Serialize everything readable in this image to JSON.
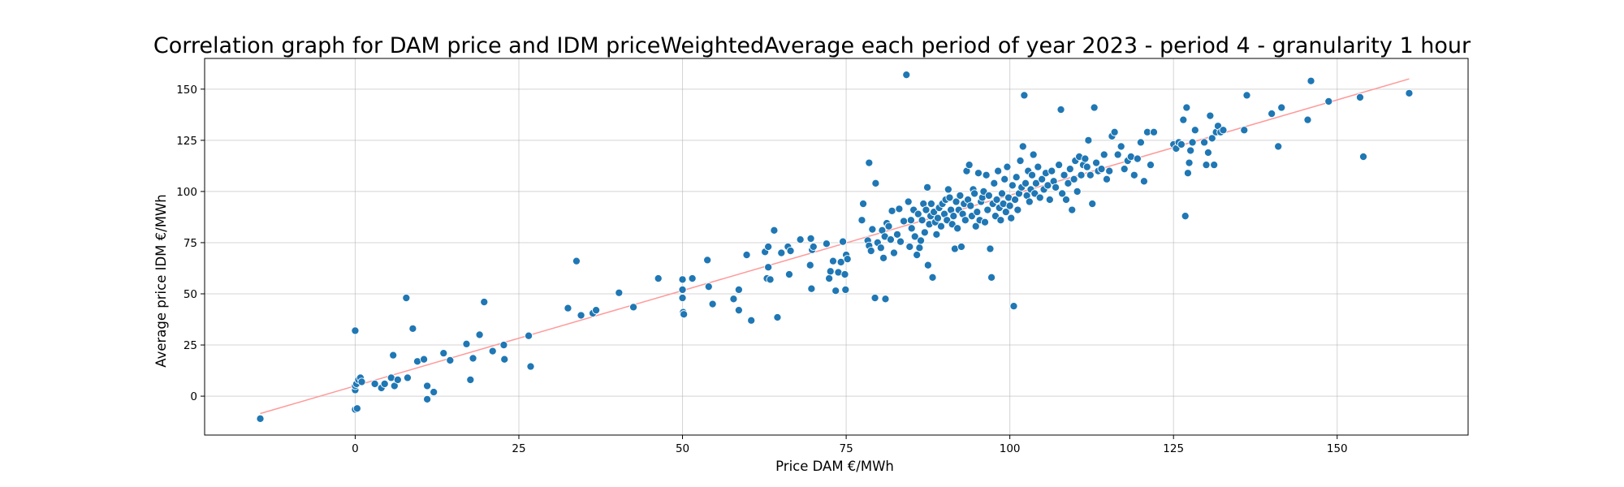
{
  "chart_data": {
    "type": "scatter",
    "title": "Correlation graph for DAM price and IDM priceWeightedAverage each period of year 2023 - period 4 - granularity 1 hour",
    "xlabel": "Price DAM €/MWh",
    "ylabel": "Average price IDM €/MWh",
    "xlim": [
      -23,
      170
    ],
    "ylim": [
      -19,
      165
    ],
    "x_ticks": [
      0,
      25,
      50,
      75,
      100,
      125,
      150
    ],
    "y_ticks": [
      0,
      25,
      50,
      75,
      100,
      125,
      150
    ],
    "grid": true,
    "point_color": "#1f77b4",
    "trend_line_color": "#ff9999",
    "trend_line": {
      "x": [
        -14.5,
        161
      ],
      "y": [
        -8.5,
        155
      ]
    },
    "series": [
      {
        "points": [
          [
            -14.5,
            -11
          ],
          [
            0,
            -6.5
          ],
          [
            0.3,
            -6
          ],
          [
            0,
            3
          ],
          [
            0,
            5
          ],
          [
            0.2,
            6
          ],
          [
            0.5,
            8
          ],
          [
            0.8,
            9
          ],
          [
            1,
            7
          ],
          [
            0,
            32
          ],
          [
            3,
            6
          ],
          [
            4,
            4
          ],
          [
            4.5,
            6
          ],
          [
            5.5,
            9
          ],
          [
            5.8,
            20
          ],
          [
            6,
            5
          ],
          [
            6.5,
            8
          ],
          [
            7.8,
            48
          ],
          [
            8,
            9
          ],
          [
            8.8,
            33
          ],
          [
            9.5,
            17
          ],
          [
            10.5,
            18
          ],
          [
            11,
            5
          ],
          [
            11,
            -1.5
          ],
          [
            12,
            2
          ],
          [
            13.5,
            21
          ],
          [
            14.5,
            17.5
          ],
          [
            17,
            25.5
          ],
          [
            17.6,
            8
          ],
          [
            18,
            18.5
          ],
          [
            19,
            30
          ],
          [
            19.7,
            46
          ],
          [
            21,
            22
          ],
          [
            22.7,
            25
          ],
          [
            22.8,
            18
          ],
          [
            26.5,
            29.5
          ],
          [
            26.8,
            14.5
          ],
          [
            32.5,
            43
          ],
          [
            33.8,
            66
          ],
          [
            34.5,
            39.5
          ],
          [
            36.3,
            40.5
          ],
          [
            36.8,
            42
          ],
          [
            40.3,
            50.5
          ],
          [
            42.5,
            43.5
          ],
          [
            46.3,
            57.5
          ],
          [
            50,
            57
          ],
          [
            50,
            52
          ],
          [
            50,
            48
          ],
          [
            50.1,
            41
          ],
          [
            50.2,
            40
          ],
          [
            51.5,
            57.5
          ],
          [
            53.8,
            66.5
          ],
          [
            54,
            53.5
          ],
          [
            54.6,
            45
          ],
          [
            57.8,
            47.5
          ],
          [
            58.6,
            52
          ],
          [
            58.6,
            42
          ],
          [
            59.8,
            69
          ],
          [
            60.5,
            37
          ],
          [
            62.6,
            70.5
          ],
          [
            62.9,
            57.5
          ],
          [
            63.1,
            63
          ],
          [
            63.4,
            57
          ],
          [
            63.1,
            73
          ],
          [
            64,
            81
          ],
          [
            64.5,
            38.5
          ],
          [
            65.1,
            70
          ],
          [
            66.3,
            59.5
          ],
          [
            66.1,
            73
          ],
          [
            66.5,
            71
          ],
          [
            68,
            76.5
          ],
          [
            69.5,
            64
          ],
          [
            69.6,
            77
          ],
          [
            69.7,
            52.5
          ],
          [
            69.8,
            71.5
          ],
          [
            70,
            73
          ],
          [
            72,
            74.5
          ],
          [
            72.4,
            57.5
          ],
          [
            72.6,
            61
          ],
          [
            73,
            66
          ],
          [
            73.4,
            51.5
          ],
          [
            73.8,
            60.5
          ],
          [
            74.2,
            65.5
          ],
          [
            74.5,
            75.5
          ],
          [
            74.8,
            59.5
          ],
          [
            74.9,
            52
          ],
          [
            75,
            69
          ],
          [
            75.2,
            67
          ],
          [
            77.4,
            86
          ],
          [
            77.6,
            94
          ],
          [
            78.3,
            76
          ],
          [
            78.5,
            114
          ],
          [
            78.5,
            73.5
          ],
          [
            78.8,
            71
          ],
          [
            79,
            81.5
          ],
          [
            79.4,
            48
          ],
          [
            79.5,
            104
          ],
          [
            79.8,
            75
          ],
          [
            80.3,
            72.5
          ],
          [
            80.5,
            81
          ],
          [
            80.7,
            67.5
          ],
          [
            80.9,
            78
          ],
          [
            81,
            47.5
          ],
          [
            81.2,
            84.5
          ],
          [
            81.5,
            83
          ],
          [
            81.8,
            76.5
          ],
          [
            82,
            90.5
          ],
          [
            82.3,
            70
          ],
          [
            82.8,
            79
          ],
          [
            83.1,
            91.5
          ],
          [
            83.3,
            75.5
          ],
          [
            83.8,
            85.5
          ],
          [
            84.2,
            157
          ],
          [
            84.5,
            95
          ],
          [
            84.7,
            73
          ],
          [
            84.9,
            86
          ],
          [
            85,
            82
          ],
          [
            85.3,
            91
          ],
          [
            85.5,
            78
          ],
          [
            85.8,
            69
          ],
          [
            86,
            89
          ],
          [
            86.2,
            72.5
          ],
          [
            86.4,
            76
          ],
          [
            86.6,
            86
          ],
          [
            86.8,
            94
          ],
          [
            87,
            80
          ],
          [
            87.2,
            91
          ],
          [
            87.4,
            102
          ],
          [
            87.5,
            64
          ],
          [
            87.7,
            84
          ],
          [
            87.9,
            88
          ],
          [
            88,
            94
          ],
          [
            88.2,
            58
          ],
          [
            88.4,
            90
          ],
          [
            88.6,
            85
          ],
          [
            88.8,
            79
          ],
          [
            89,
            87
          ],
          [
            89.2,
            92
          ],
          [
            89.5,
            83
          ],
          [
            89.7,
            94
          ],
          [
            90,
            89
          ],
          [
            90.2,
            96
          ],
          [
            90.4,
            86
          ],
          [
            90.6,
            101
          ],
          [
            90.8,
            97
          ],
          [
            91,
            91
          ],
          [
            91.2,
            84
          ],
          [
            91.4,
            88
          ],
          [
            91.6,
            72
          ],
          [
            91.8,
            95
          ],
          [
            92,
            82
          ],
          [
            92.2,
            91
          ],
          [
            92.4,
            98
          ],
          [
            92.6,
            73
          ],
          [
            92.8,
            89
          ],
          [
            93,
            94
          ],
          [
            93.2,
            86
          ],
          [
            93.4,
            110
          ],
          [
            93.6,
            96
          ],
          [
            93.8,
            113
          ],
          [
            94,
            93
          ],
          [
            94.2,
            88
          ],
          [
            94.4,
            101
          ],
          [
            94.6,
            99
          ],
          [
            94.8,
            83
          ],
          [
            95,
            90
          ],
          [
            95.2,
            109
          ],
          [
            95.4,
            86
          ],
          [
            95.6,
            95
          ],
          [
            95.8,
            97
          ],
          [
            96,
            100
          ],
          [
            96.2,
            85
          ],
          [
            96.4,
            108
          ],
          [
            96.6,
            91
          ],
          [
            96.8,
            98
          ],
          [
            97,
            72
          ],
          [
            97.2,
            58
          ],
          [
            97.4,
            94
          ],
          [
            97.6,
            104
          ],
          [
            97.8,
            88
          ],
          [
            98,
            96
          ],
          [
            98.2,
            110
          ],
          [
            98.4,
            92
          ],
          [
            98.6,
            86
          ],
          [
            98.8,
            99
          ],
          [
            99,
            94
          ],
          [
            99.2,
            106
          ],
          [
            99.4,
            90
          ],
          [
            99.6,
            112
          ],
          [
            99.8,
            97
          ],
          [
            100,
            93
          ],
          [
            100.2,
            87
          ],
          [
            100.4,
            103
          ],
          [
            100.6,
            44
          ],
          [
            100.8,
            96
          ],
          [
            101,
            107
          ],
          [
            101.2,
            91
          ],
          [
            101.4,
            99
          ],
          [
            101.6,
            115
          ],
          [
            101.8,
            102
          ],
          [
            102,
            122
          ],
          [
            102.2,
            147
          ],
          [
            102.4,
            104
          ],
          [
            102.6,
            98
          ],
          [
            102.8,
            110
          ],
          [
            103,
            95
          ],
          [
            103.2,
            101
          ],
          [
            103.4,
            108
          ],
          [
            103.6,
            118
          ],
          [
            103.8,
            99
          ],
          [
            104,
            104
          ],
          [
            104.3,
            112
          ],
          [
            104.6,
            97
          ],
          [
            104.9,
            106
          ],
          [
            105.2,
            101
          ],
          [
            105.5,
            109
          ],
          [
            105.8,
            103
          ],
          [
            106.1,
            96
          ],
          [
            106.4,
            110
          ],
          [
            106.7,
            105
          ],
          [
            107,
            102
          ],
          [
            107.5,
            113
          ],
          [
            107.8,
            140
          ],
          [
            108,
            99
          ],
          [
            108.3,
            108
          ],
          [
            108.6,
            96
          ],
          [
            108.9,
            104
          ],
          [
            109.2,
            111
          ],
          [
            109.5,
            91
          ],
          [
            109.8,
            106
          ],
          [
            110,
            115
          ],
          [
            110.3,
            100
          ],
          [
            110.6,
            117
          ],
          [
            110.9,
            108
          ],
          [
            111.2,
            113
          ],
          [
            111.5,
            116
          ],
          [
            111.8,
            112
          ],
          [
            112,
            125
          ],
          [
            112.3,
            108
          ],
          [
            112.6,
            94
          ],
          [
            112.9,
            141
          ],
          [
            113.2,
            114
          ],
          [
            113.5,
            110
          ],
          [
            114,
            111
          ],
          [
            114.4,
            118
          ],
          [
            114.8,
            106
          ],
          [
            115.2,
            110
          ],
          [
            115.6,
            127
          ],
          [
            116,
            129
          ],
          [
            116.5,
            118
          ],
          [
            117,
            122
          ],
          [
            117.5,
            111
          ],
          [
            118,
            115
          ],
          [
            118.5,
            117
          ],
          [
            119,
            108
          ],
          [
            119.5,
            116
          ],
          [
            120,
            124
          ],
          [
            120.5,
            105
          ],
          [
            121,
            129
          ],
          [
            121.5,
            113
          ],
          [
            122,
            129
          ],
          [
            125,
            123
          ],
          [
            125.4,
            121
          ],
          [
            125.8,
            124
          ],
          [
            126.2,
            123
          ],
          [
            126.5,
            135
          ],
          [
            126.8,
            88
          ],
          [
            127,
            141
          ],
          [
            127.2,
            109
          ],
          [
            127.4,
            114
          ],
          [
            127.6,
            120
          ],
          [
            127.9,
            124
          ],
          [
            128.3,
            130
          ],
          [
            129.7,
            124
          ],
          [
            130,
            113
          ],
          [
            130.3,
            119
          ],
          [
            130.6,
            137
          ],
          [
            130.9,
            126
          ],
          [
            131.2,
            113
          ],
          [
            131.5,
            129
          ],
          [
            131.8,
            132
          ],
          [
            132.2,
            129
          ],
          [
            132.6,
            130
          ],
          [
            135.8,
            130
          ],
          [
            136.2,
            147
          ],
          [
            140,
            138
          ],
          [
            141,
            122
          ],
          [
            141.5,
            141
          ],
          [
            145.5,
            135
          ],
          [
            146,
            154
          ],
          [
            148.7,
            144
          ],
          [
            153.5,
            146
          ],
          [
            154,
            117
          ],
          [
            161,
            148
          ]
        ]
      }
    ]
  }
}
